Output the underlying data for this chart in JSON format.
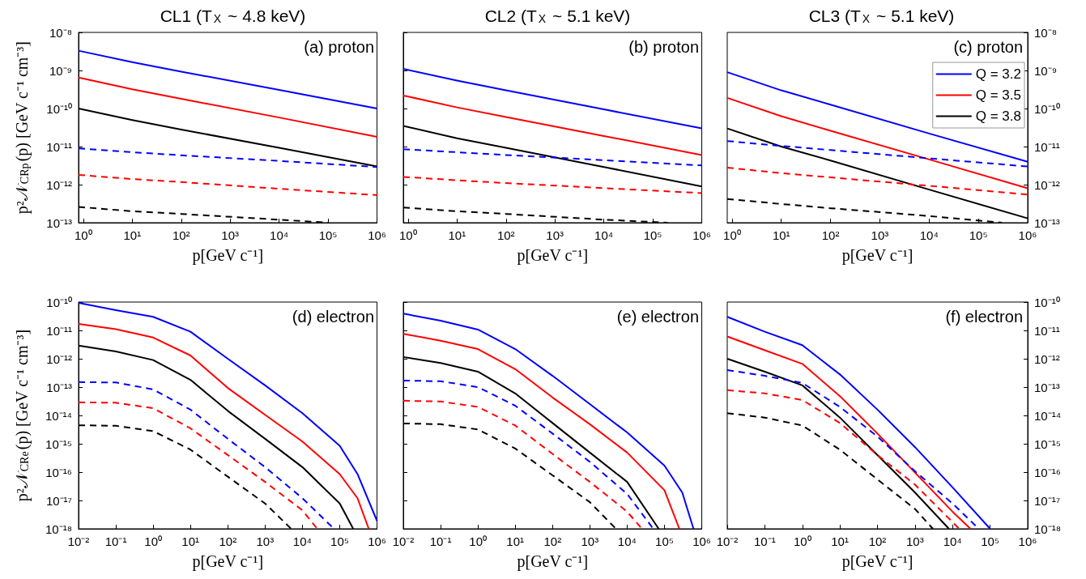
{
  "chart_data": [
    {
      "type": "line",
      "title": "CL1 (T$_{X}$ ~ 4.8 keV)",
      "xlabel": "p[GeV c⁻¹]",
      "ylabel": "p²𝒩$_{CRp}$(p) [GeV c⁻¹ cm⁻³]",
      "annotations": [
        "(a) proton"
      ],
      "log": "xy",
      "xlim": [
        0.8,
        1000000
      ],
      "xticks": [
        {
          "value": 1,
          "label": "10⁰"
        },
        {
          "value": 10,
          "label": "10¹"
        },
        {
          "value": 100,
          "label": "10²"
        },
        {
          "value": 1000,
          "label": "10³"
        },
        {
          "value": 10000,
          "label": "10⁴"
        },
        {
          "value": 100000,
          "label": "10⁵"
        },
        {
          "value": 1000000,
          "label": "10⁶"
        }
      ],
      "ylim": [
        1e-13,
        1e-08
      ],
      "yticks": [
        {
          "value": 1e-13,
          "label": "10⁻¹³"
        },
        {
          "value": 1e-12,
          "label": "10⁻¹²"
        },
        {
          "value": 1e-11,
          "label": "10⁻¹¹"
        },
        {
          "value": 1e-10,
          "label": "10⁻¹⁰"
        },
        {
          "value": 1e-09,
          "label": "10⁻⁹"
        },
        {
          "value": 1e-08,
          "label": "10⁻⁸"
        }
      ],
      "series": [
        {
          "color": "#0000ff",
          "x": [
            0.8,
            10,
            100,
            10000,
            1000000
          ],
          "values": [
            3.3e-09,
            1.66e-09,
            9.3e-10,
            3.1e-10,
            1e-10
          ]
        },
        {
          "color": "#ff0000",
          "x": [
            0.8,
            10,
            100,
            10000,
            1000000
          ],
          "values": [
            6.5e-10,
            3.2e-10,
            1.8e-10,
            5.8e-11,
            1.8e-11
          ]
        },
        {
          "color": "#000000",
          "x": [
            0.8,
            10,
            100,
            10000,
            1000000
          ],
          "values": [
            1e-10,
            5e-11,
            2.8e-11,
            9.3e-12,
            3e-12
          ]
        },
        {
          "color": "#0000ff",
          "line_style": "dashed",
          "x": [
            0.8,
            10,
            100,
            10000,
            1000000
          ],
          "values": [
            9e-12,
            7.1e-12,
            5.9e-12,
            4.2e-12,
            2.9e-12
          ]
        },
        {
          "color": "#ff0000",
          "line_style": "dashed",
          "x": [
            0.8,
            10,
            100,
            10000,
            1000000
          ],
          "values": [
            1.8e-12,
            1.4e-12,
            1.17e-12,
            7.8e-13,
            5.3e-13
          ]
        },
        {
          "color": "#000000",
          "line_style": "dashed",
          "x": [
            0.8,
            10,
            100,
            10000,
            100000
          ],
          "values": [
            2.6e-13,
            2e-13,
            1.7e-13,
            1.2e-13,
            1e-13
          ]
        }
      ]
    },
    {
      "type": "line",
      "title": "CL2 (T$_{X}$ ~ 5.1 keV)",
      "xlabel": "p[GeV c⁻¹]",
      "annotations": [
        "(b) proton"
      ],
      "log": "xy",
      "tick_labels": "x",
      "xlim": [
        0.8,
        1000000
      ],
      "xticks": [
        {
          "value": 1,
          "label": "10⁰"
        },
        {
          "value": 10,
          "label": "10¹"
        },
        {
          "value": 100,
          "label": "10²"
        },
        {
          "value": 1000,
          "label": "10³"
        },
        {
          "value": 10000,
          "label": "10⁴"
        },
        {
          "value": 100000,
          "label": "10⁵"
        },
        {
          "value": 1000000,
          "label": "10⁶"
        }
      ],
      "ylim": [
        1e-13,
        1e-08
      ],
      "yticks": [
        {
          "value": 1e-13,
          "label": null
        },
        {
          "value": 1e-12,
          "label": null
        },
        {
          "value": 1e-11,
          "label": null
        },
        {
          "value": 1e-10,
          "label": null
        },
        {
          "value": 1e-09,
          "label": null
        },
        {
          "value": 1e-08,
          "label": null
        }
      ],
      "series": [
        {
          "color": "#0000ff",
          "x": [
            0.8,
            10,
            100,
            10000,
            1000000
          ],
          "values": [
            1.1e-09,
            5.4e-10,
            3e-10,
            9.5e-11,
            3e-11
          ]
        },
        {
          "color": "#ff0000",
          "x": [
            0.8,
            10,
            100,
            10000,
            1000000
          ],
          "values": [
            2.2e-10,
            1.07e-10,
            6e-11,
            1.9e-11,
            6e-12
          ]
        },
        {
          "color": "#000000",
          "x": [
            0.8,
            10,
            100,
            10000,
            1000000
          ],
          "values": [
            3.5e-11,
            1.66e-11,
            9.3e-12,
            2.9e-12,
            9e-13
          ]
        },
        {
          "color": "#0000ff",
          "line_style": "dashed",
          "x": [
            0.8,
            10,
            100,
            10000,
            1000000
          ],
          "values": [
            8.5e-12,
            7.1e-12,
            6e-12,
            4.4e-12,
            3.2e-12
          ]
        },
        {
          "color": "#ff0000",
          "line_style": "dashed",
          "x": [
            0.8,
            10,
            100,
            10000,
            1000000
          ],
          "values": [
            1.6e-12,
            1.3e-12,
            1.1e-12,
            8.1e-13,
            6e-13
          ]
        },
        {
          "color": "#000000",
          "line_style": "dashed",
          "x": [
            0.8,
            10,
            100,
            10000,
            200000
          ],
          "values": [
            2.5e-13,
            2e-13,
            1.7e-13,
            1.2e-13,
            1e-13
          ]
        }
      ]
    },
    {
      "type": "line",
      "title": "CL3 (T$_{X}$ ~ 5.1 keV)",
      "xlabel": "p[GeV c⁻¹]",
      "annotations": [
        "(c) proton"
      ],
      "log": "xy",
      "legend": "top right",
      "xlim": [
        0.8,
        1000000
      ],
      "xticks": [
        {
          "value": 1,
          "label": "10⁰"
        },
        {
          "value": 10,
          "label": "10¹"
        },
        {
          "value": 100,
          "label": "10²"
        },
        {
          "value": 1000,
          "label": "10³"
        },
        {
          "value": 10000,
          "label": "10⁴"
        },
        {
          "value": 100000,
          "label": "10⁵"
        },
        {
          "value": 1000000,
          "label": "10⁶"
        }
      ],
      "ylim": [
        1e-13,
        1e-08
      ],
      "yticks": [
        {
          "value": 1e-13,
          "label": "10⁻¹³"
        },
        {
          "value": 1e-12,
          "label": "10⁻¹²"
        },
        {
          "value": 1e-11,
          "label": "10⁻¹¹"
        },
        {
          "value": 1e-10,
          "label": "10⁻¹⁰"
        },
        {
          "value": 1e-09,
          "label": "10⁻⁹"
        },
        {
          "value": 1e-08,
          "label": "10⁻⁸"
        }
      ],
      "series": [
        {
          "name": "Q = 3.2",
          "color": "#0000ff",
          "x": [
            0.8,
            10,
            100,
            10000,
            1000000
          ],
          "values": [
            9e-10,
            3e-10,
            1.26e-10,
            2.2e-11,
            4e-12
          ]
        },
        {
          "name": "Q = 3.5",
          "color": "#ff0000",
          "x": [
            0.8,
            10,
            100,
            10000,
            1000000
          ],
          "values": [
            1.9e-10,
            6.3e-11,
            2.6e-11,
            4.6e-12,
            8e-13
          ]
        },
        {
          "name": "Q = 3.8",
          "color": "#000000",
          "x": [
            0.8,
            10,
            100,
            10000,
            1000000
          ],
          "values": [
            3e-11,
            1e-11,
            4.3e-12,
            7.4e-13,
            1.3e-13
          ]
        },
        {
          "color": "#0000ff",
          "line_style": "dashed",
          "x": [
            0.8,
            10,
            100,
            10000,
            1000000
          ],
          "values": [
            1.4e-11,
            1.04e-11,
            8.1e-12,
            4.9e-12,
            3e-12
          ]
        },
        {
          "color": "#ff0000",
          "line_style": "dashed",
          "x": [
            0.8,
            10,
            100,
            10000,
            1000000
          ],
          "values": [
            2.8e-12,
            2e-12,
            1.55e-12,
            9.3e-13,
            5.5e-13
          ]
        },
        {
          "color": "#000000",
          "line_style": "dashed",
          "x": [
            0.8,
            10,
            100,
            10000,
            300000
          ],
          "values": [
            4.2e-13,
            3.1e-13,
            2.4e-13,
            1.5e-13,
            1e-13
          ]
        }
      ]
    },
    {
      "type": "line",
      "xlabel": "p[GeV c⁻¹]",
      "ylabel": "p²𝒩$_{CRe}$(p) [GeV c⁻¹ cm⁻³]",
      "annotations": [
        "(d) electron"
      ],
      "log": "xy",
      "xlim": [
        0.01,
        1000000
      ],
      "xticks": [
        {
          "value": 0.01,
          "label": "10⁻²"
        },
        {
          "value": 0.1,
          "label": "10⁻¹"
        },
        {
          "value": 1,
          "label": "10⁰"
        },
        {
          "value": 10,
          "label": "10¹"
        },
        {
          "value": 100,
          "label": "10²"
        },
        {
          "value": 1000,
          "label": "10³"
        },
        {
          "value": 10000,
          "label": "10⁴"
        },
        {
          "value": 100000,
          "label": "10⁵"
        },
        {
          "value": 1000000,
          "label": "10⁶"
        }
      ],
      "ylim": [
        1e-18,
        1e-10
      ],
      "yticks": [
        {
          "value": 1e-18,
          "label": "10⁻¹⁸"
        },
        {
          "value": 1e-17,
          "label": "10⁻¹⁷"
        },
        {
          "value": 1e-16,
          "label": "10⁻¹⁶"
        },
        {
          "value": 1e-15,
          "label": "10⁻¹⁵"
        },
        {
          "value": 1e-14,
          "label": "10⁻¹⁴"
        },
        {
          "value": 1e-13,
          "label": "10⁻¹³"
        },
        {
          "value": 1e-12,
          "label": "10⁻¹²"
        },
        {
          "value": 1e-11,
          "label": "10⁻¹¹"
        },
        {
          "value": 1e-10,
          "label": "10⁻¹⁰"
        }
      ],
      "series": [
        {
          "color": "#0000ff",
          "x": [
            0.01,
            0.1,
            1,
            10,
            100,
            1000,
            10000,
            100000,
            300000,
            1000000
          ],
          "values": [
            9.3e-11,
            5.2e-11,
            3e-11,
            9e-12,
            1e-12,
            1.15e-13,
            1.2e-14,
            8.5e-16,
            8.5e-17,
            1.9e-18
          ]
        },
        {
          "color": "#ff0000",
          "x": [
            0.01,
            0.1,
            1,
            10,
            100,
            1000,
            10000,
            100000,
            300000,
            600000
          ],
          "values": [
            1.7e-11,
            1.1e-11,
            5.6e-12,
            1.3e-12,
            9.3e-14,
            1.05e-14,
            1.2e-15,
            8.5e-17,
            1.2e-17,
            1e-18
          ]
        },
        {
          "color": "#000000",
          "x": [
            0.01,
            0.1,
            1,
            10,
            100,
            1000,
            10000,
            100000,
            230000
          ],
          "values": [
            2.9e-12,
            1.8e-12,
            9e-13,
            1.8e-13,
            1.45e-14,
            1.5e-15,
            1.5e-16,
            7.8e-18,
            1e-18
          ]
        },
        {
          "color": "#0000ff",
          "line_style": "dashed",
          "x": [
            0.01,
            0.1,
            1,
            10,
            100,
            1000,
            10000,
            70000
          ],
          "values": [
            1.5e-13,
            1.45e-13,
            8.3e-14,
            1.6e-14,
            1.5e-15,
            1.5e-16,
            1.2e-17,
            1e-18
          ]
        },
        {
          "color": "#ff0000",
          "line_style": "dashed",
          "x": [
            0.01,
            0.1,
            1,
            10,
            100,
            1000,
            10000,
            25000
          ],
          "values": [
            2.9e-14,
            2.8e-14,
            1.8e-14,
            3.5e-15,
            4e-16,
            4.5e-17,
            4.5e-18,
            1e-18
          ]
        },
        {
          "color": "#000000",
          "line_style": "dashed",
          "x": [
            0.01,
            0.1,
            1,
            10,
            100,
            1000,
            5000
          ],
          "values": [
            4.5e-15,
            4.3e-15,
            2.8e-15,
            6.2e-16,
            6.9e-17,
            7.8e-18,
            1e-18
          ]
        }
      ]
    },
    {
      "type": "line",
      "xlabel": "p[GeV c⁻¹]",
      "annotations": [
        "(e) electron"
      ],
      "log": "xy",
      "tick_labels": "x",
      "xlim": [
        0.01,
        1000000
      ],
      "xticks": [
        {
          "value": 0.01,
          "label": "10⁻²"
        },
        {
          "value": 0.1,
          "label": "10⁻¹"
        },
        {
          "value": 1,
          "label": "10⁰"
        },
        {
          "value": 10,
          "label": "10¹"
        },
        {
          "value": 100,
          "label": "10²"
        },
        {
          "value": 1000,
          "label": "10³"
        },
        {
          "value": 10000,
          "label": "10⁴"
        },
        {
          "value": 100000,
          "label": "10⁵"
        },
        {
          "value": 1000000,
          "label": "10⁶"
        }
      ],
      "ylim": [
        1e-18,
        1e-10
      ],
      "yticks": [
        {
          "value": 1e-18,
          "label": null
        },
        {
          "value": 1e-17,
          "label": null
        },
        {
          "value": 1e-16,
          "label": null
        },
        {
          "value": 1e-15,
          "label": null
        },
        {
          "value": 1e-14,
          "label": null
        },
        {
          "value": 1e-13,
          "label": null
        },
        {
          "value": 1e-12,
          "label": null
        },
        {
          "value": 1e-11,
          "label": null
        },
        {
          "value": 1e-10,
          "label": null
        }
      ],
      "series": [
        {
          "color": "#0000ff",
          "x": [
            0.01,
            0.1,
            1,
            10,
            100,
            1000,
            10000,
            100000,
            300000,
            600000
          ],
          "values": [
            3.9e-11,
            2.2e-11,
            1.07e-11,
            2.2e-12,
            2.5e-13,
            2.5e-14,
            2.5e-15,
            1.7e-16,
            1.9e-17,
            1e-18
          ]
        },
        {
          "color": "#ff0000",
          "x": [
            0.01,
            0.1,
            1,
            10,
            100,
            1000,
            10000,
            100000,
            250000
          ],
          "values": [
            7.6e-12,
            4.3e-12,
            2.2e-12,
            4.3e-13,
            4.3e-14,
            4.9e-15,
            4.9e-16,
            2.3e-17,
            1e-18
          ]
        },
        {
          "color": "#000000",
          "x": [
            0.01,
            0.1,
            1,
            10,
            100,
            1000,
            10000,
            70000
          ],
          "values": [
            1.15e-12,
            7.1e-13,
            3.5e-13,
            6e-14,
            5.4e-15,
            4.9e-16,
            4.5e-17,
            1e-18
          ]
        },
        {
          "color": "#0000ff",
          "line_style": "dashed",
          "x": [
            0.01,
            0.1,
            1,
            10,
            100,
            1000,
            10000,
            50000
          ],
          "values": [
            1.7e-13,
            1.6e-13,
            1e-13,
            2.2e-14,
            2.3e-15,
            2.3e-16,
            1.7e-17,
            1e-18
          ]
        },
        {
          "color": "#ff0000",
          "line_style": "dashed",
          "x": [
            0.01,
            0.1,
            1,
            10,
            100,
            1000,
            10000,
            25000
          ],
          "values": [
            3.3e-14,
            3.1e-14,
            2e-14,
            4.4e-15,
            4.4e-16,
            4.5e-17,
            4e-18,
            1e-18
          ]
        },
        {
          "color": "#000000",
          "line_style": "dashed",
          "x": [
            0.01,
            0.1,
            1,
            10,
            100,
            1000,
            5000
          ],
          "values": [
            5.2e-15,
            4.9e-15,
            3.2e-15,
            6.8e-16,
            7.7e-17,
            8.7e-18,
            1e-18
          ]
        }
      ]
    },
    {
      "type": "line",
      "xlabel": "p[GeV c⁻¹]",
      "annotations": [
        "(f) electron"
      ],
      "log": "xy",
      "xlim": [
        0.01,
        1000000
      ],
      "xticks": [
        {
          "value": 0.01,
          "label": "10⁻²"
        },
        {
          "value": 0.1,
          "label": "10⁻¹"
        },
        {
          "value": 1,
          "label": "10⁰"
        },
        {
          "value": 10,
          "label": "10¹"
        },
        {
          "value": 100,
          "label": "10²"
        },
        {
          "value": 1000,
          "label": "10³"
        },
        {
          "value": 10000,
          "label": "10⁴"
        },
        {
          "value": 100000,
          "label": "10⁵"
        },
        {
          "value": 1000000,
          "label": "10⁶"
        }
      ],
      "ylim": [
        1e-18,
        1e-10
      ],
      "yticks": [
        {
          "value": 1e-18,
          "label": "10⁻¹⁸"
        },
        {
          "value": 1e-17,
          "label": "10⁻¹⁷"
        },
        {
          "value": 1e-16,
          "label": "10⁻¹⁶"
        },
        {
          "value": 1e-15,
          "label": "10⁻¹⁵"
        },
        {
          "value": 1e-14,
          "label": "10⁻¹⁴"
        },
        {
          "value": 1e-13,
          "label": "10⁻¹³"
        },
        {
          "value": 1e-12,
          "label": "10⁻¹²"
        },
        {
          "value": 1e-11,
          "label": "10⁻¹¹"
        },
        {
          "value": 1e-10,
          "label": "10⁻¹⁰"
        }
      ],
      "series": [
        {
          "color": "#0000ff",
          "x": [
            0.01,
            0.1,
            1,
            10,
            100,
            1000,
            10000,
            100000
          ],
          "values": [
            3e-11,
            9e-12,
            3e-12,
            2.8e-13,
            1.6e-14,
            7.6e-16,
            2.9e-17,
            1e-18
          ]
        },
        {
          "color": "#ff0000",
          "x": [
            0.01,
            0.1,
            1,
            10,
            100,
            1000,
            10000,
            30000
          ],
          "values": [
            6.1e-12,
            2e-12,
            6.6e-13,
            4.8e-14,
            2.3e-15,
            9.6e-17,
            4e-18,
            1e-18
          ]
        },
        {
          "color": "#000000",
          "x": [
            0.01,
            0.1,
            1,
            10,
            100,
            1000,
            8000
          ],
          "values": [
            1e-12,
            3.5e-13,
            1.15e-13,
            8.4e-15,
            4e-16,
            1.9e-17,
            1e-18
          ]
        },
        {
          "color": "#0000ff",
          "line_style": "dashed",
          "x": [
            0.01,
            0.1,
            1,
            10,
            100,
            1000,
            10000,
            50000
          ],
          "values": [
            4e-13,
            2.5e-13,
            1.4e-13,
            2e-14,
            1.8e-15,
            1.07e-16,
            7.8e-18,
            1e-18
          ]
        },
        {
          "color": "#ff0000",
          "line_style": "dashed",
          "x": [
            0.01,
            0.1,
            1,
            10,
            100,
            1000,
            15000
          ],
          "values": [
            7.8e-14,
            6e-14,
            3.5e-14,
            5.4e-15,
            4e-16,
            3.6e-17,
            1e-18
          ]
        },
        {
          "color": "#000000",
          "line_style": "dashed",
          "x": [
            0.01,
            0.1,
            1,
            10,
            100,
            1000,
            3000
          ],
          "values": [
            1.2e-14,
            8.4e-15,
            4.4e-15,
            6.2e-16,
            5.5e-17,
            5e-18,
            1e-18
          ]
        }
      ]
    }
  ]
}
